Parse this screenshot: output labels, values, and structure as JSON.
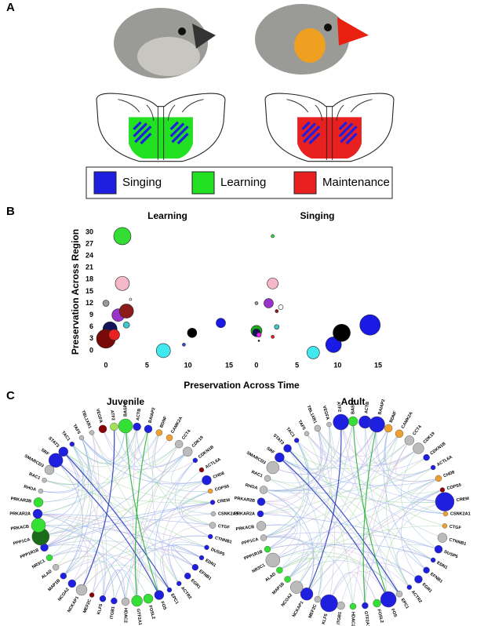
{
  "panel_labels": [
    "A",
    "B",
    "C"
  ],
  "legend": {
    "items": [
      "Singing",
      "Learning",
      "Maintenance"
    ],
    "colors": [
      "#1f1fe0",
      "#22e022",
      "#e82020"
    ]
  },
  "panel_b": {
    "xlabel": "Preservation Across Time",
    "ylabel": "Preservation Across Region"
  },
  "chart_data": [
    {
      "type": "scatter",
      "title": "Learning",
      "x": [
        0,
        2,
        2,
        1.5,
        2.5,
        2.5,
        0.5,
        0,
        1,
        7,
        9.5,
        10.5,
        14,
        3
      ],
      "values": [
        12,
        29,
        17,
        9,
        10,
        6.5,
        5.5,
        3,
        4,
        0,
        1.5,
        4.5,
        7,
        13
      ],
      "sizes": [
        4,
        11,
        9,
        8,
        9,
        4,
        9,
        12,
        7,
        9,
        2,
        6,
        6,
        1.5
      ],
      "colors": [
        "#999999",
        "#33dd33",
        "#f4b8c8",
        "#9933cc",
        "#8b1a1a",
        "#40c8c8",
        "#14145a",
        "#7a0a0a",
        "#e82020",
        "#40e8f0",
        "#3050e0",
        "#000000",
        "#1a1ae6",
        "#ffffff"
      ],
      "xlim": [
        -0.7,
        15.7
      ],
      "ylim": [
        -1.5,
        31
      ],
      "xticks": [
        0,
        5,
        10,
        15
      ],
      "yticks": [
        0,
        3,
        6,
        9,
        12,
        15,
        18,
        21,
        24,
        27,
        30
      ]
    },
    {
      "type": "scatter",
      "title": "Singing",
      "x": [
        0,
        2,
        2,
        1.5,
        3,
        2.5,
        2.5,
        0,
        0,
        0.3,
        0.3,
        2,
        7,
        9.5,
        10.5,
        14
      ],
      "values": [
        12,
        29,
        17,
        12,
        11,
        10,
        6,
        5,
        4.5,
        4,
        2.5,
        3.5,
        -0.5,
        1.5,
        4.5,
        6.5
      ],
      "sizes": [
        2,
        2,
        7,
        6,
        3,
        2,
        3,
        7,
        5,
        3,
        1,
        2,
        8,
        10,
        11,
        13
      ],
      "colors": [
        "#999999",
        "#33dd33",
        "#f4b8c8",
        "#9933cc",
        "#ffffff",
        "#8b1a1a",
        "#40c8c8",
        "#1aaa1a",
        "#14145a",
        "#ee22ee",
        "#000000",
        "#e82020",
        "#40e8f0",
        "#1a1ae6",
        "#000000",
        "#1a1ae6"
      ],
      "xlim": [
        -0.7,
        15.7
      ],
      "ylim": [
        -1.5,
        31
      ],
      "xticks": [
        0,
        5,
        10,
        15
      ]
    }
  ],
  "networks": [
    {
      "title": "Juvenile",
      "labels": [
        "BASP1",
        "ACTB",
        "BAIAP2",
        "BDNF",
        "CAMK2A",
        "CCT4",
        "CDK19",
        "CDKN1B",
        "ACTL6A",
        "CHD8",
        "COPS5",
        "CREM",
        "CSNK2A1",
        "CTGF",
        "CTNNB1",
        "DUSP5",
        "EDN1",
        "EFNB1",
        "EGR1",
        "ACTR2",
        "EPC1",
        "FOS",
        "FOSL2",
        "GTF2A1",
        "HDAC2",
        "ITGB1",
        "KLF5",
        "MEF2C",
        "NCKAP1",
        "NCOA2",
        "MAP1B",
        "ALAD",
        "NR3C1",
        "PPP1R1B",
        "PPP1CA",
        "PRKACB",
        "PRKAR2A",
        "PRKAR2B",
        "RHOA",
        "RAC1",
        "SMARCD3",
        "SRF",
        "STAT3",
        "TAC1",
        "TAF5",
        "TBL1XR1",
        "VEGFA",
        "ATF2"
      ],
      "sizes": [
        9,
        5,
        5,
        4,
        4,
        5,
        6,
        3,
        3,
        6,
        3,
        3,
        3,
        4,
        3,
        3,
        3,
        4,
        4,
        3,
        3,
        6,
        6,
        7,
        5,
        4,
        4,
        3,
        7,
        5,
        4,
        4,
        4,
        5,
        11,
        9,
        6,
        6,
        3,
        3,
        6,
        9,
        6,
        3,
        3,
        3,
        5,
        5
      ],
      "colors": [
        "#33e033",
        "#1f1fe0",
        "#1f1fe0",
        "#f0a030",
        "#f0a030",
        "#bbbbbb",
        "#bbbbbb",
        "#1f1fe0",
        "#8b0000",
        "#1f1fe0",
        "#f0a030",
        "#1f1fe0",
        "#bbbbbb",
        "#bbbbbb",
        "#1f1fe0",
        "#1f1fe0",
        "#1f1fe0",
        "#1f1fe0",
        "#1f1fe0",
        "#1f1fe0",
        "#1f1fe0",
        "#1f1fe0",
        "#33e033",
        "#33e033",
        "#bbbbbb",
        "#1f1fe0",
        "#1f1fe0",
        "#8b0000",
        "#bbbbbb",
        "#1f1fe0",
        "#1f1fe0",
        "#bbbbbb",
        "#33e033",
        "#1f1fe0",
        "#1a6b1a",
        "#33e033",
        "#1f1fe0",
        "#33e033",
        "#bbbbbb",
        "#bbbbbb",
        "#bbbbbb",
        "#1f1fe0",
        "#1f1fe0",
        "#1f1fe0",
        "#bbbbbb",
        "#bbbbbb",
        "#8b0000",
        "#a6e05a"
      ]
    },
    {
      "title": "Adult",
      "labels": [
        "BASP1",
        "ACTB",
        "BAIAP2",
        "BDNF",
        "CAMK2A",
        "CCT4",
        "CDK19",
        "CDKN1B",
        "ACTL6A",
        "CHD8",
        "COPS5",
        "CREM",
        "CSNK2A1",
        "CTGF",
        "CTNNB1",
        "DUSP5",
        "EDN1",
        "EFNB1",
        "EGR1",
        "ACTR2",
        "EPC1",
        "FOS",
        "FOSL2",
        "GTF2A1",
        "HDAC2",
        "ITGB1",
        "KLF5",
        "MEF2C",
        "NCKAP1",
        "NCOA2",
        "MAP1B",
        "ALAD",
        "NR3C1",
        "PPP1R1B",
        "PPP1CA",
        "PRKACB",
        "PRKAR2A",
        "PRKAR2B",
        "RHOA",
        "RAC1",
        "SMARCD3",
        "SRF",
        "STAT3",
        "TAC1",
        "TAF5",
        "TBL1XR1",
        "VEGFA",
        "ATF2"
      ],
      "sizes": [
        6,
        8,
        10,
        5,
        5,
        6,
        7,
        4,
        3,
        4,
        3,
        12,
        3,
        3,
        6,
        5,
        3,
        4,
        5,
        3,
        4,
        10,
        5,
        4,
        4,
        5,
        11,
        4,
        8,
        8,
        4,
        4,
        9,
        4,
        4,
        6,
        4,
        5,
        5,
        4,
        8,
        6,
        5,
        3,
        3,
        4,
        3,
        10
      ],
      "colors": [
        "#33e033",
        "#1f1fe0",
        "#1f1fe0",
        "#f0a030",
        "#f0a030",
        "#bbbbbb",
        "#bbbbbb",
        "#1f1fe0",
        "#1f1fe0",
        "#f0a030",
        "#8b0000",
        "#1f1fe0",
        "#f0a030",
        "#f0a030",
        "#bbbbbb",
        "#1f1fe0",
        "#1f1fe0",
        "#1f1fe0",
        "#1f1fe0",
        "#1f1fe0",
        "#bbbbbb",
        "#1f1fe0",
        "#33e033",
        "#1f1fe0",
        "#33e033",
        "#bbbbbb",
        "#1f1fe0",
        "#bbbbbb",
        "#1f1fe0",
        "#bbbbbb",
        "#33e033",
        "#33e033",
        "#bbbbbb",
        "#33e033",
        "#bbbbbb",
        "#bbbbbb",
        "#1f1fe0",
        "#1f1fe0",
        "#bbbbbb",
        "#bbbbbb",
        "#bbbbbb",
        "#1f1fe0",
        "#1f1fe0",
        "#1f1fe0",
        "#bbbbbb",
        "#bbbbbb",
        "#bbbbbb",
        "#1f1fe0"
      ]
    }
  ]
}
